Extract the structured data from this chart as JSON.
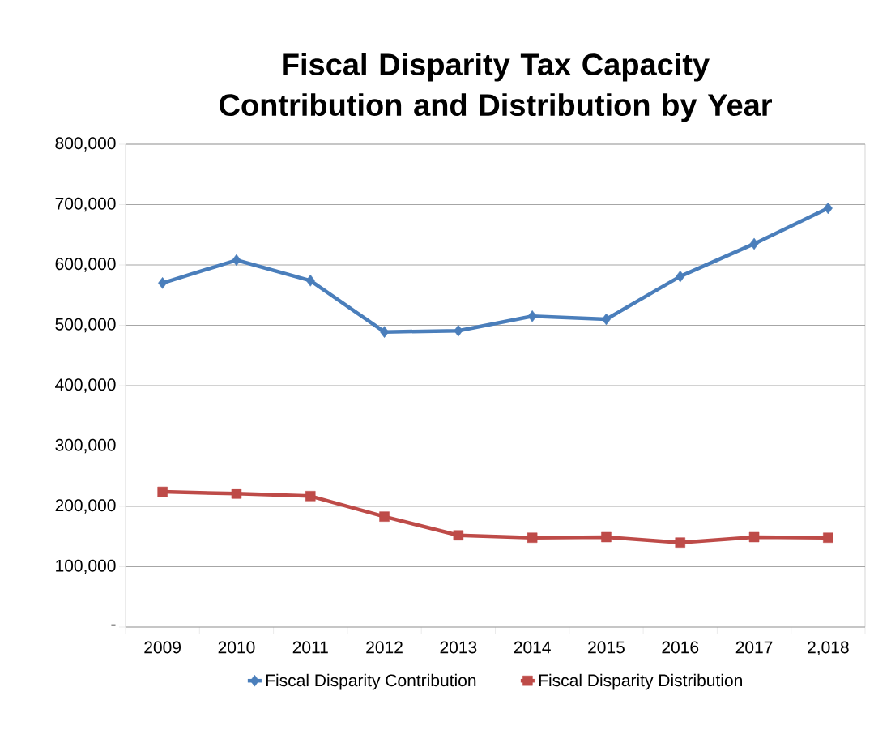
{
  "chart_data": {
    "type": "line",
    "title": "Fiscal Disparity Tax Capacity Contribution and Distribution by Year",
    "categories": [
      "2009",
      "2010",
      "2011",
      "2012",
      "2013",
      "2014",
      "2015",
      "2016",
      "2017",
      "2,018"
    ],
    "series": [
      {
        "name": "Fiscal Disparity Contribution",
        "color": "#4a7ebb",
        "marker": "diamond",
        "values": [
          570000,
          608000,
          574000,
          489000,
          491000,
          515000,
          510000,
          581000,
          635000,
          694000
        ]
      },
      {
        "name": "Fiscal Disparity Distribution",
        "color": "#be4b48",
        "marker": "square",
        "values": [
          224000,
          221000,
          217000,
          183000,
          152000,
          148000,
          149000,
          140000,
          149000,
          148000
        ]
      }
    ],
    "ylim": [
      0,
      800000
    ],
    "yticks": [
      {
        "value": 0,
        "label": "-"
      },
      {
        "value": 100000,
        "label": "100,000"
      },
      {
        "value": 200000,
        "label": "200,000"
      },
      {
        "value": 300000,
        "label": "300,000"
      },
      {
        "value": 400000,
        "label": "400,000"
      },
      {
        "value": 500000,
        "label": "500,000"
      },
      {
        "value": 600000,
        "label": "600,000"
      },
      {
        "value": 700000,
        "label": "700,000"
      },
      {
        "value": 800000,
        "label": "800,000"
      }
    ],
    "grid": "y",
    "legend": "bottom",
    "line_style": "solid"
  }
}
